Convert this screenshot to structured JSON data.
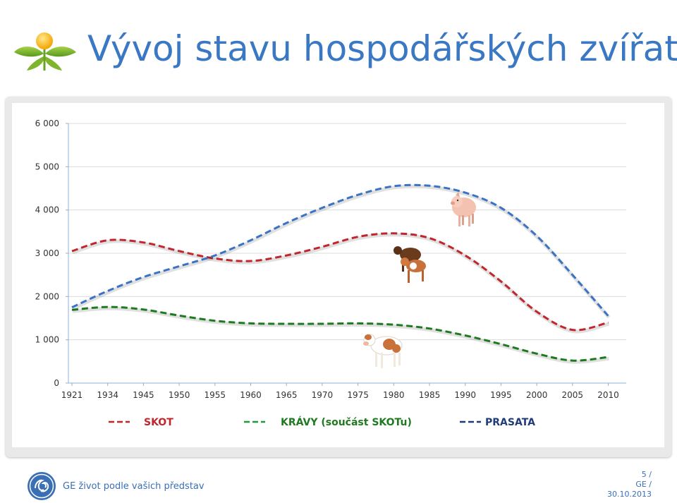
{
  "header": {
    "title": "Vývoj stavu hospodářských zvířat"
  },
  "footer": {
    "slogan": "GE život podle vašich představ",
    "page": "5 /",
    "company": "GE /",
    "date": "30.10.2013"
  },
  "colors": {
    "title": "#3a78c4",
    "skot": "#c0262c",
    "kravy": "#1f7a1f",
    "prasata": "#3a73c4",
    "legend_prasata": "#1f3b7a"
  },
  "icons": [
    "sun-plant-logo-icon",
    "ge-logo-icon",
    "pig-icon",
    "calves-icon",
    "cow-icon"
  ],
  "chart_data": {
    "type": "line",
    "title": "",
    "xlabel": "",
    "ylabel": "",
    "x": [
      "1921",
      "1934",
      "1945",
      "1950",
      "1955",
      "1960",
      "1965",
      "1970",
      "1975",
      "1980",
      "1985",
      "1990",
      "1995",
      "2000",
      "2005",
      "2010"
    ],
    "ylim": [
      0,
      6000
    ],
    "yticks": [
      0,
      1000,
      2000,
      3000,
      4000,
      5000,
      6000
    ],
    "ytick_labels": [
      "0",
      "1 000",
      "2 000",
      "3 000",
      "4 000",
      "5 000",
      "6 000"
    ],
    "grid": true,
    "legend_position": "bottom",
    "series": [
      {
        "name": "SKOT",
        "color": "#c0262c",
        "values": [
          3050,
          3300,
          3250,
          3050,
          2880,
          2820,
          2950,
          3150,
          3380,
          3460,
          3350,
          2950,
          2350,
          1650,
          1230,
          1400
        ]
      },
      {
        "name": "KRÁVY (součást SKOTu)",
        "color": "#1f7a1f",
        "values": [
          1690,
          1760,
          1700,
          1560,
          1440,
          1380,
          1370,
          1370,
          1380,
          1350,
          1260,
          1100,
          900,
          680,
          520,
          600
        ]
      },
      {
        "name": "PRASATA",
        "color": "#3a73c4",
        "values": [
          1750,
          2130,
          2450,
          2700,
          2950,
          3300,
          3700,
          4050,
          4350,
          4550,
          4560,
          4400,
          4050,
          3400,
          2500,
          1550
        ]
      }
    ]
  }
}
